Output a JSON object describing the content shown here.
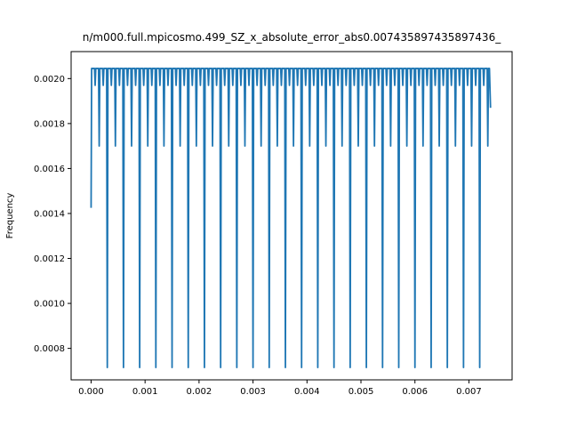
{
  "chart_data": {
    "type": "line",
    "title": "n/m000.full.mpicosmo.499_SZ_x_absolute_error_abs0.007435897435897436_",
    "xlabel": "",
    "ylabel": "Frequency",
    "xlim": [
      -0.00037,
      0.0078
    ],
    "ylim": [
      0.00066,
      0.00212
    ],
    "x_ticks": [
      0.0,
      0.001,
      0.002,
      0.003,
      0.004,
      0.005,
      0.006,
      0.007
    ],
    "x_tick_labels": [
      "0.000",
      "0.001",
      "0.002",
      "0.003",
      "0.004",
      "0.005",
      "0.006",
      "0.007"
    ],
    "y_ticks": [
      0.0008,
      0.001,
      0.0012,
      0.0014,
      0.0016,
      0.0018,
      0.002
    ],
    "y_tick_labels": [
      "0.0008",
      "0.0010",
      "0.0012",
      "0.0014",
      "0.0016",
      "0.0018",
      "0.0020"
    ],
    "grid": false,
    "line_color": "#1f77b4",
    "series": [
      {
        "x_start": 0.0,
        "x_end": 0.0074,
        "start_value": 0.001425,
        "baseline": 0.002045,
        "end_value": 0.00187,
        "deep_dip_value": 0.000715,
        "deep_dip_x": [
          0.0003,
          0.0006,
          0.0009,
          0.0012,
          0.0015,
          0.0018,
          0.0021,
          0.0024,
          0.0027,
          0.003,
          0.0033,
          0.0036,
          0.0039,
          0.0042,
          0.0045,
          0.0048,
          0.0051,
          0.0054,
          0.0057,
          0.006,
          0.0063,
          0.0066,
          0.0069,
          0.0072
        ],
        "mid_dip_value": 0.0017,
        "mid_dip_x": [
          0.00015,
          0.00045,
          0.00075,
          0.00105,
          0.00135,
          0.00165,
          0.00195,
          0.00225,
          0.00255,
          0.00285,
          0.00315,
          0.00345,
          0.00375,
          0.00405,
          0.00435,
          0.00465,
          0.00495,
          0.00525,
          0.00555,
          0.00585,
          0.00615,
          0.00645,
          0.00675,
          0.00705,
          0.00735
        ],
        "small_dip_value": 0.00197,
        "small_dip_spacing": 7.5e-05
      }
    ]
  }
}
